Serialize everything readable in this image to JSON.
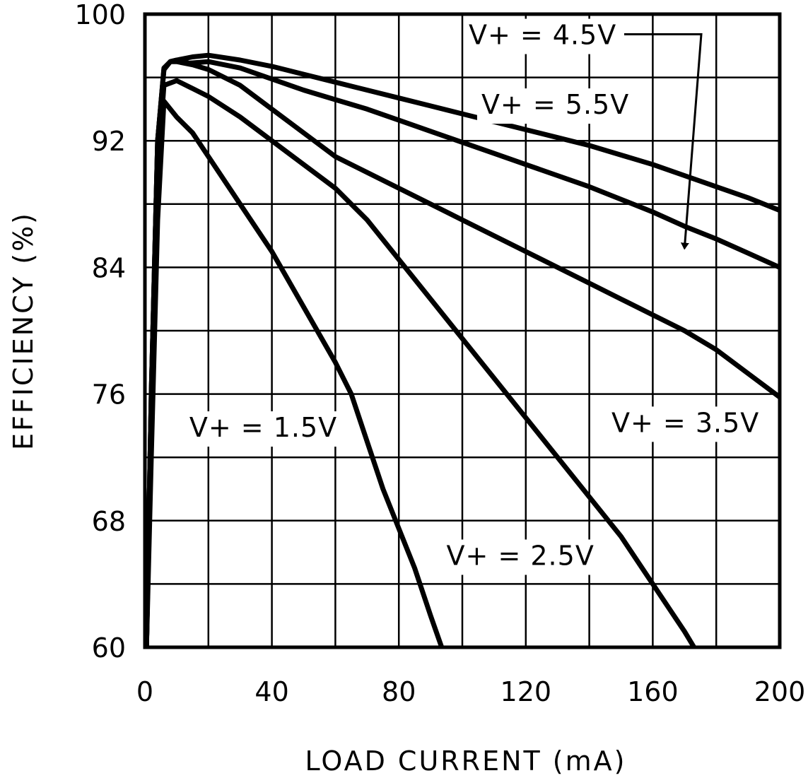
{
  "chart_data": {
    "type": "line",
    "title": "",
    "xlabel": "LOAD CURRENT (mA)",
    "ylabel": "EFFICIENCY (%)",
    "xlim": [
      0,
      200
    ],
    "ylim": [
      60,
      100
    ],
    "xticks": [
      0,
      20,
      40,
      60,
      80,
      100,
      120,
      140,
      160,
      180,
      200
    ],
    "yticks": [
      60,
      64,
      68,
      72,
      76,
      80,
      84,
      88,
      92,
      96,
      100
    ],
    "xtick_labels": [
      "0",
      "40",
      "80",
      "120",
      "160",
      "200"
    ],
    "ytick_labels": [
      "60",
      "68",
      "76",
      "84",
      "92",
      "100"
    ],
    "grid": true,
    "legend": "none (series labeled directly on plot)",
    "colors": {
      "line": "#000000",
      "grid": "#000000",
      "background": "#ffffff"
    },
    "series": [
      {
        "name": "V+ = 1.5V",
        "x": [
          0.5,
          2,
          4,
          6,
          10,
          15,
          20,
          30,
          40,
          50,
          60,
          65,
          70,
          75,
          80,
          85,
          90,
          93.5
        ],
        "y": [
          60,
          72,
          87,
          94.5,
          93.5,
          92.5,
          91,
          88,
          85,
          81.5,
          78,
          76,
          73,
          70,
          67.5,
          65,
          62,
          60
        ]
      },
      {
        "name": "V+ = 2.5V",
        "x": [
          0.5,
          2,
          4,
          6,
          10,
          15,
          20,
          30,
          40,
          50,
          60,
          70,
          80,
          90,
          100,
          110,
          120,
          130,
          140,
          150,
          160,
          170,
          173
        ],
        "y": [
          60,
          75,
          90,
          95.5,
          95.8,
          95.3,
          94.8,
          93.5,
          92,
          90.5,
          89,
          87,
          84.5,
          82,
          79.5,
          77,
          74.5,
          72,
          69.5,
          67,
          64,
          61,
          60
        ]
      },
      {
        "name": "V+ = 3.5V",
        "x": [
          0.5,
          2,
          4,
          6,
          8,
          10,
          15,
          20,
          30,
          40,
          50,
          60,
          70,
          80,
          90,
          100,
          110,
          120,
          130,
          140,
          150,
          160,
          170,
          180,
          190,
          200
        ],
        "y": [
          60,
          76,
          92,
          96.5,
          97,
          97,
          96.8,
          96.5,
          95.5,
          94,
          92.5,
          91,
          90,
          89,
          88,
          87,
          86,
          85,
          84,
          83,
          82,
          81,
          80,
          78.8,
          77.3,
          75.8
        ]
      },
      {
        "name": "V+ = 4.5V",
        "x": [
          0.5,
          2,
          4,
          6,
          8,
          10,
          14,
          20,
          30,
          40,
          50,
          60,
          70,
          80,
          90,
          100,
          110,
          120,
          130,
          140,
          150,
          160,
          170,
          180,
          190,
          200
        ],
        "y": [
          60,
          76,
          92,
          96.6,
          97,
          97.1,
          96.9,
          97,
          96.6,
          95.9,
          95.2,
          94.6,
          94,
          93.3,
          92.6,
          91.9,
          91.2,
          90.5,
          89.8,
          89.1,
          88.3,
          87.5,
          86.6,
          85.8,
          84.9,
          84
        ]
      },
      {
        "name": "V+ = 5.5V",
        "x": [
          0.5,
          2,
          4,
          6,
          8,
          10,
          15,
          20,
          30,
          40,
          50,
          60,
          70,
          80,
          90,
          100,
          110,
          120,
          130,
          140,
          150,
          160,
          170,
          180,
          190,
          200
        ],
        "y": [
          60,
          76,
          92,
          96.5,
          97,
          97.1,
          97.3,
          97.4,
          97.1,
          96.7,
          96.2,
          95.7,
          95.2,
          94.7,
          94.2,
          93.7,
          93.2,
          92.7,
          92.2,
          91.7,
          91.1,
          90.5,
          89.8,
          89.1,
          88.4,
          87.6
        ]
      }
    ],
    "annotations": [
      {
        "text": "V+ = 4.5V",
        "at_data": [
          102,
          98.1
        ],
        "arrow_to": [
          170,
          85.2
        ]
      },
      {
        "text": "V+ = 5.5V",
        "at_data": [
          106,
          93.7
        ]
      },
      {
        "text": "V+ = 1.5V",
        "at_data": [
          14,
          73.3
        ]
      },
      {
        "text": "V+ = 2.5V",
        "at_data": [
          95,
          65.2
        ]
      },
      {
        "text": "V+ = 3.5V",
        "at_data": [
          147,
          73.6
        ]
      }
    ]
  }
}
